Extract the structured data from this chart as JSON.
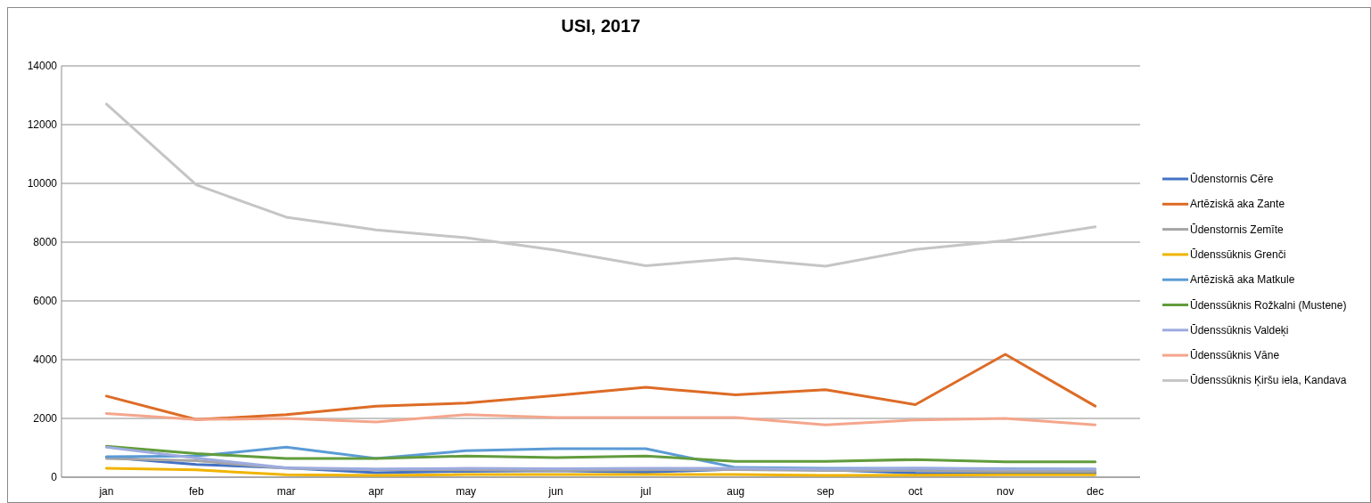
{
  "chart_data": {
    "type": "line",
    "title": "USI, 2017",
    "categories": [
      "jan",
      "feb",
      "mar",
      "apr",
      "may",
      "jun",
      "jul",
      "aug",
      "sep",
      "oct",
      "nov",
      "dec"
    ],
    "ylim": [
      0,
      14000
    ],
    "yticks": [
      0,
      2000,
      4000,
      6000,
      8000,
      10000,
      12000,
      14000
    ],
    "grid": "y",
    "legend": "right",
    "marker": "none",
    "line_style": "solid",
    "series": [
      {
        "name": "Ūdenstornis Cēre",
        "color": "#4472c4",
        "values": [
          680,
          430,
          320,
          150,
          200,
          220,
          170,
          270,
          250,
          140,
          130,
          150
        ]
      },
      {
        "name": "Artēziskā aka Zante",
        "color": "#dd6b26",
        "values": [
          2760,
          1960,
          2130,
          2420,
          2520,
          2780,
          3060,
          2800,
          2980,
          2470,
          4180,
          2420
        ]
      },
      {
        "name": "Ūdenstornis Zemīte",
        "color": "#a5a5a5",
        "values": [
          640,
          560,
          300,
          260,
          250,
          230,
          250,
          260,
          230,
          230,
          200,
          200
        ]
      },
      {
        "name": "Ūdenssūknis Grenči",
        "color": "#f0b400",
        "values": [
          300,
          250,
          80,
          60,
          90,
          90,
          90,
          90,
          60,
          70,
          80,
          80
        ]
      },
      {
        "name": "Artēziskā aka Matkule",
        "color": "#5b9bd5",
        "values": [
          700,
          720,
          1020,
          640,
          900,
          970,
          970,
          330,
          300,
          300,
          290,
          270
        ]
      },
      {
        "name": "Ūdenssūknis Rožkalni (Mustene)",
        "color": "#629c3d",
        "values": [
          1050,
          800,
          640,
          640,
          720,
          670,
          720,
          540,
          540,
          600,
          520,
          520
        ]
      },
      {
        "name": "Ūdenssūknis Valdeķi",
        "color": "#9dabdf",
        "values": [
          1020,
          650,
          320,
          280,
          300,
          290,
          300,
          300,
          270,
          300,
          270,
          270
        ]
      },
      {
        "name": "Ūdenssūknis Vāne",
        "color": "#f4a68c",
        "values": [
          2170,
          1960,
          2000,
          1880,
          2130,
          2030,
          2030,
          2030,
          1780,
          1950,
          2000,
          1780
        ]
      },
      {
        "name": "Ūdenssūknis Ķiršu iela, Kandava",
        "color": "#c5c5c5",
        "values": [
          12700,
          9950,
          8850,
          8420,
          8150,
          7730,
          7200,
          7450,
          7180,
          7750,
          8050,
          8520
        ]
      }
    ]
  }
}
